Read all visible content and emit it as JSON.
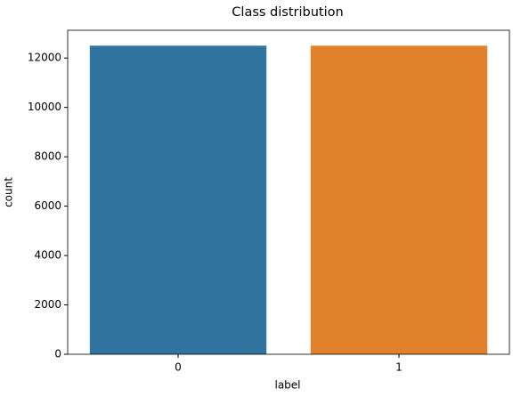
{
  "chart_data": {
    "type": "bar",
    "title": "Class distribution",
    "x_label": "label",
    "y_label": "count",
    "categories": [
      "0",
      "1"
    ],
    "values": [
      12500,
      12500
    ],
    "colors": [
      "#3274a1",
      "#e1812c"
    ],
    "ylim": [
      0,
      13125
    ],
    "yticks": [
      0,
      2000,
      4000,
      6000,
      8000,
      10000,
      12000
    ],
    "grid": false
  }
}
